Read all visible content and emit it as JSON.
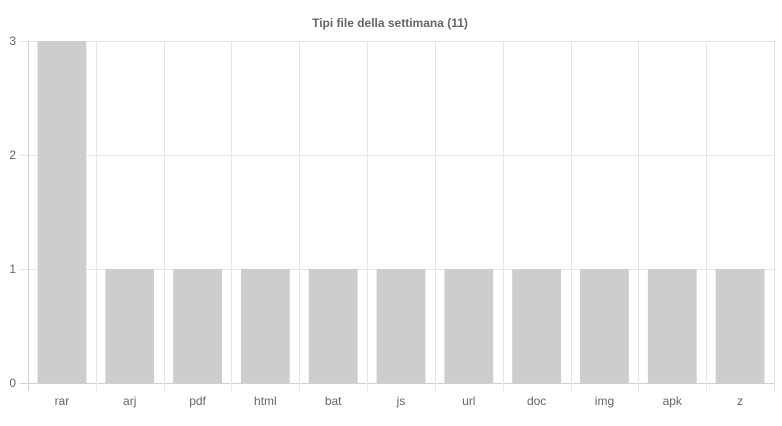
{
  "chart_data": {
    "type": "bar",
    "title": "Tipi file della settimana (11)",
    "categories": [
      "rar",
      "arj",
      "pdf",
      "html",
      "bat",
      "js",
      "url",
      "doc",
      "img",
      "apk",
      "z"
    ],
    "values": [
      3,
      1,
      1,
      1,
      1,
      1,
      1,
      1,
      1,
      1,
      1
    ],
    "ylim": [
      0,
      3
    ],
    "yticks": [
      "0",
      "1",
      "2",
      "3"
    ],
    "grid": true,
    "legend": "none",
    "bar_color": "#cdcdcf",
    "grid_color": "#e5e5e5",
    "text_color": "#666666"
  }
}
